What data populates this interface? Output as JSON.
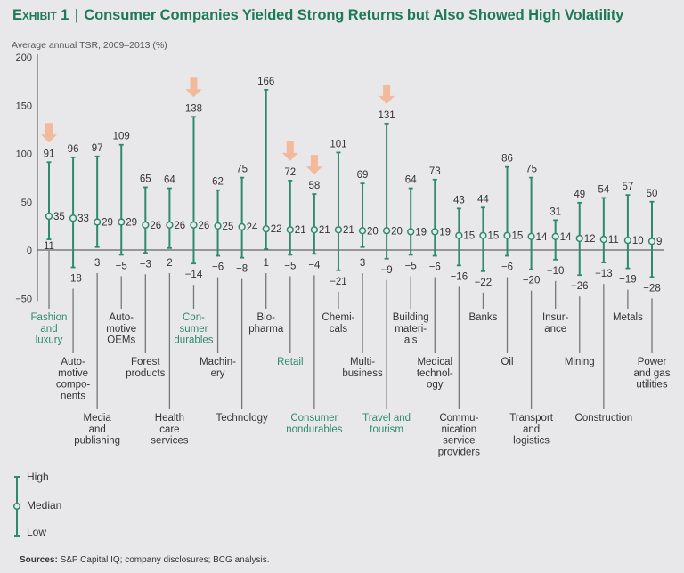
{
  "header": {
    "exhibit": "Exhibit 1",
    "separator": "|",
    "title": "Consumer Companies Yielded Strong Returns but Also Showed High Volatility",
    "subtitle": "Average annual TSR, 2009–2013 (%)"
  },
  "colors": {
    "title": "#1e7a55",
    "bar": "#2e8b6a",
    "highlight_label": "#2e8b6a",
    "arrow": "#f2b99a",
    "axis": "#666666",
    "connector": "#777777"
  },
  "legend": {
    "high": "High",
    "median": "Median",
    "low": "Low"
  },
  "footer": {
    "sources_label": "Sources:",
    "sources_text": "S&P Capital IQ; company disclosures; BCG analysis."
  },
  "chart_data": {
    "type": "range-dot",
    "title": "Consumer Companies Yielded Strong Returns but Also Showed High Volatility",
    "ylabel": "Average annual TSR, 2009–2013 (%)",
    "xlabel": "",
    "ylim": [
      -50,
      200
    ],
    "yticks": [
      200,
      150,
      100,
      50,
      0,
      -50
    ],
    "grid": false,
    "legend_position": "bottom-left",
    "categories": [
      {
        "name": "Fashion and luxury",
        "lines": [
          "Fashion",
          "and",
          "luxury"
        ],
        "high": 91,
        "median": 35,
        "low": 11,
        "highlight": true
      },
      {
        "name": "Automotive components",
        "lines": [
          "Auto-",
          "motive",
          "compo-",
          "nents"
        ],
        "high": 96,
        "median": 33,
        "low": -18,
        "highlight": false
      },
      {
        "name": "Media and publishing",
        "lines": [
          "Media",
          "and",
          "publishing"
        ],
        "high": 97,
        "median": 29,
        "low": 3,
        "highlight": false
      },
      {
        "name": "Automotive OEMs",
        "lines": [
          "Auto-",
          "motive",
          "OEMs"
        ],
        "high": 109,
        "median": 29,
        "low": -5,
        "highlight": false
      },
      {
        "name": "Forest products",
        "lines": [
          "Forest",
          "products"
        ],
        "high": 65,
        "median": 26,
        "low": -3,
        "highlight": false
      },
      {
        "name": "Health care services",
        "lines": [
          "Health",
          "care",
          "services"
        ],
        "high": 64,
        "median": 26,
        "low": 2,
        "highlight": false
      },
      {
        "name": "Consumer durables",
        "lines": [
          "Con-",
          "sumer",
          "durables"
        ],
        "high": 138,
        "median": 26,
        "low": -14,
        "highlight": true
      },
      {
        "name": "Machinery",
        "lines": [
          "Machin-",
          "ery"
        ],
        "high": 62,
        "median": 25,
        "low": -6,
        "highlight": false
      },
      {
        "name": "Technology",
        "lines": [
          "Technology"
        ],
        "high": 75,
        "median": 24,
        "low": -8,
        "highlight": false
      },
      {
        "name": "Biopharma",
        "lines": [
          "Bio-",
          "pharma"
        ],
        "high": 166,
        "median": 22,
        "low": 1,
        "highlight": false
      },
      {
        "name": "Retail",
        "lines": [
          "Retail"
        ],
        "high": 72,
        "median": 21,
        "low": -5,
        "highlight": true
      },
      {
        "name": "Consumer nondurables",
        "lines": [
          "Consumer",
          "nondurables"
        ],
        "high": 58,
        "median": 21,
        "low": -4,
        "highlight": true
      },
      {
        "name": "Chemicals",
        "lines": [
          "Chemi-",
          "cals"
        ],
        "high": 101,
        "median": 21,
        "low": -21,
        "highlight": false
      },
      {
        "name": "Multibusiness",
        "lines": [
          "Multi-",
          "business"
        ],
        "high": 69,
        "median": 20,
        "low": 3,
        "highlight": false
      },
      {
        "name": "Travel and tourism",
        "lines": [
          "Travel and",
          "tourism"
        ],
        "high": 131,
        "median": 20,
        "low": -9,
        "highlight": true
      },
      {
        "name": "Building materials",
        "lines": [
          "Building",
          "materi-",
          "als"
        ],
        "high": 64,
        "median": 19,
        "low": -5,
        "highlight": false
      },
      {
        "name": "Medical technology",
        "lines": [
          "Medical",
          "technol-",
          "ogy"
        ],
        "high": 73,
        "median": 19,
        "low": -6,
        "highlight": false
      },
      {
        "name": "Communication service providers",
        "lines": [
          "Commu-",
          "nication",
          "service",
          "providers"
        ],
        "high": 43,
        "median": 15,
        "low": -16,
        "highlight": false
      },
      {
        "name": "Banks",
        "lines": [
          "Banks"
        ],
        "high": 44,
        "median": 15,
        "low": -22,
        "highlight": false
      },
      {
        "name": "Oil",
        "lines": [
          "Oil"
        ],
        "high": 86,
        "median": 15,
        "low": -6,
        "highlight": false
      },
      {
        "name": "Transport and logistics",
        "lines": [
          "Transport",
          "and",
          "logistics"
        ],
        "high": 75,
        "median": 14,
        "low": -20,
        "highlight": false
      },
      {
        "name": "Insurance",
        "lines": [
          "Insur-",
          "ance"
        ],
        "high": 31,
        "median": 14,
        "low": -10,
        "highlight": false
      },
      {
        "name": "Mining",
        "lines": [
          "Mining"
        ],
        "high": 49,
        "median": 12,
        "low": -26,
        "highlight": false
      },
      {
        "name": "Construction",
        "lines": [
          "Construction"
        ],
        "high": 54,
        "median": 11,
        "low": -13,
        "highlight": false
      },
      {
        "name": "Metals",
        "lines": [
          "Metals"
        ],
        "high": 57,
        "median": 10,
        "low": -19,
        "highlight": false
      },
      {
        "name": "Power and gas utilities",
        "lines": [
          "Power",
          "and gas",
          "utilities"
        ],
        "high": 50,
        "median": 9,
        "low": -28,
        "highlight": false
      }
    ]
  }
}
